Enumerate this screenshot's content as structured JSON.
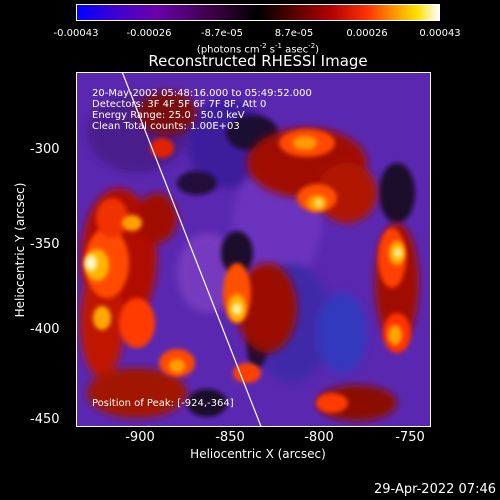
{
  "colorbar": {
    "ticks": [
      "-0.00043",
      "-0.00026",
      "-8.7e-05",
      "8.7e-05",
      "0.00026",
      "0.00043"
    ],
    "units_prefix": "(photons cm",
    "units_exp1": "-2",
    "units_mid": " s",
    "units_exp2": "-1",
    "units_mid2": " asec",
    "units_exp3": "-2",
    "units_suffix": ")"
  },
  "title": "Reconstructed RHESSI Image",
  "annotations": {
    "time": "20-May-2002 05:48:16.000 to 05:49:52.000",
    "detectors": "Detectors: 3F 4F 5F 6F 7F 8F, Att 0",
    "energy": "Energy Range: 25.0 - 50.0 keV",
    "clean": "Clean    Total counts: 1.00E+03",
    "peak": "Position of Peak: [-924,-364]"
  },
  "axes": {
    "x_label": "Heliocentric X (arcsec)",
    "y_label": "Heliocentric Y (arcsec)",
    "x_ticks": [
      "-900",
      "-850",
      "-800",
      "-750"
    ],
    "y_ticks": [
      "-300",
      "-350",
      "-400",
      "-450"
    ],
    "x_range": [
      -935,
      -745
    ],
    "y_range": [
      -452,
      -267
    ]
  },
  "timestamp": "29-Apr-2022 07:46"
}
